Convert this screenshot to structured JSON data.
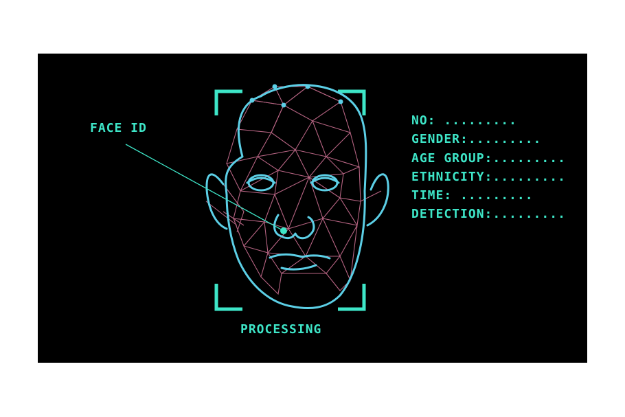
{
  "colors": {
    "background": "#000000",
    "accent": "#3ee6c8",
    "face_outline": "#5ccfe6",
    "mesh": "#c06a8a"
  },
  "labels": {
    "face_id": "FACE ID",
    "processing": "PROCESSING"
  },
  "info_fields": [
    "NO:   .........",
    "GENDER:.........",
    "AGE GROUP:.........",
    "ETHNICITY:.........",
    "TIME: .........",
    "DETECTION:........."
  ]
}
